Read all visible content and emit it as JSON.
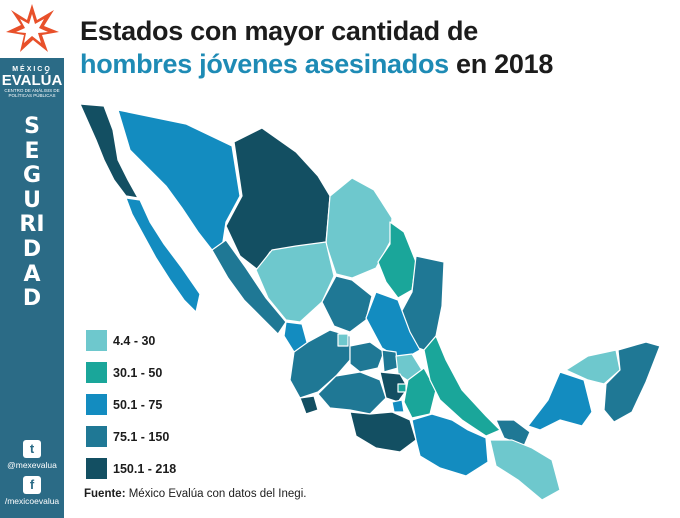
{
  "brand": {
    "line1": "MÉXICO",
    "line2": "EVALÚA",
    "line3": "CENTRO DE ANÁLISIS DE POLÍTICAS PÚBLICAS"
  },
  "section_word": "SEGURIDAD",
  "social": {
    "twitter_handle": "@mexevalua",
    "facebook_handle": "/mexicoevalua"
  },
  "title": {
    "line1": "Estados con mayor cantidad de",
    "highlight": "hombres jóvenes asesinados",
    "line2_rest": " en 2018"
  },
  "legend": [
    {
      "label": "4.4 - 30",
      "color": "#6ec8cd"
    },
    {
      "label": "30.1 - 50",
      "color": "#1aa69a"
    },
    {
      "label": "50.1 - 75",
      "color": "#138cc0"
    },
    {
      "label": "75.1 - 150",
      "color": "#1f7895"
    },
    {
      "label": "150.1 - 218",
      "color": "#134f62"
    }
  ],
  "source": {
    "label": "Fuente:",
    "text": " México Evalúa con datos del Inegi."
  },
  "colors": {
    "sidebar": "#2b6b86",
    "logo_star": "#e8502a",
    "title_highlight": "#1e8bb5"
  }
}
